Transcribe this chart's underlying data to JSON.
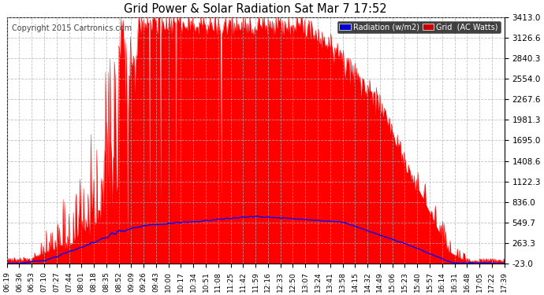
{
  "title": "Grid Power & Solar Radiation Sat Mar 7 17:52",
  "copyright": "Copyright 2015 Cartronics.com",
  "background_color": "#ffffff",
  "plot_bg_color": "#ffffff",
  "grid_color": "#b0b0b0",
  "red_fill_color": "#ff0000",
  "blue_line_color": "#0000ff",
  "yticks": [
    -23.0,
    263.3,
    549.7,
    836.0,
    1122.3,
    1408.6,
    1695.0,
    1981.3,
    2267.6,
    2554.0,
    2840.3,
    3126.6,
    3413.0
  ],
  "ylim": [
    -23.0,
    3413.0
  ],
  "xtick_labels": [
    "06:19",
    "06:36",
    "06:53",
    "07:10",
    "07:27",
    "07:44",
    "08:01",
    "08:18",
    "08:35",
    "08:52",
    "09:09",
    "09:26",
    "09:43",
    "10:00",
    "10:17",
    "10:34",
    "10:51",
    "11:08",
    "11:25",
    "11:42",
    "11:59",
    "12:16",
    "12:33",
    "12:50",
    "13:07",
    "13:24",
    "13:41",
    "13:58",
    "14:15",
    "14:32",
    "14:49",
    "15:06",
    "15:23",
    "15:40",
    "15:57",
    "16:14",
    "16:31",
    "16:48",
    "17:05",
    "17:22",
    "17:39"
  ],
  "legend_bg_radiation": "#0000cc",
  "legend_bg_grid": "#cc0000"
}
